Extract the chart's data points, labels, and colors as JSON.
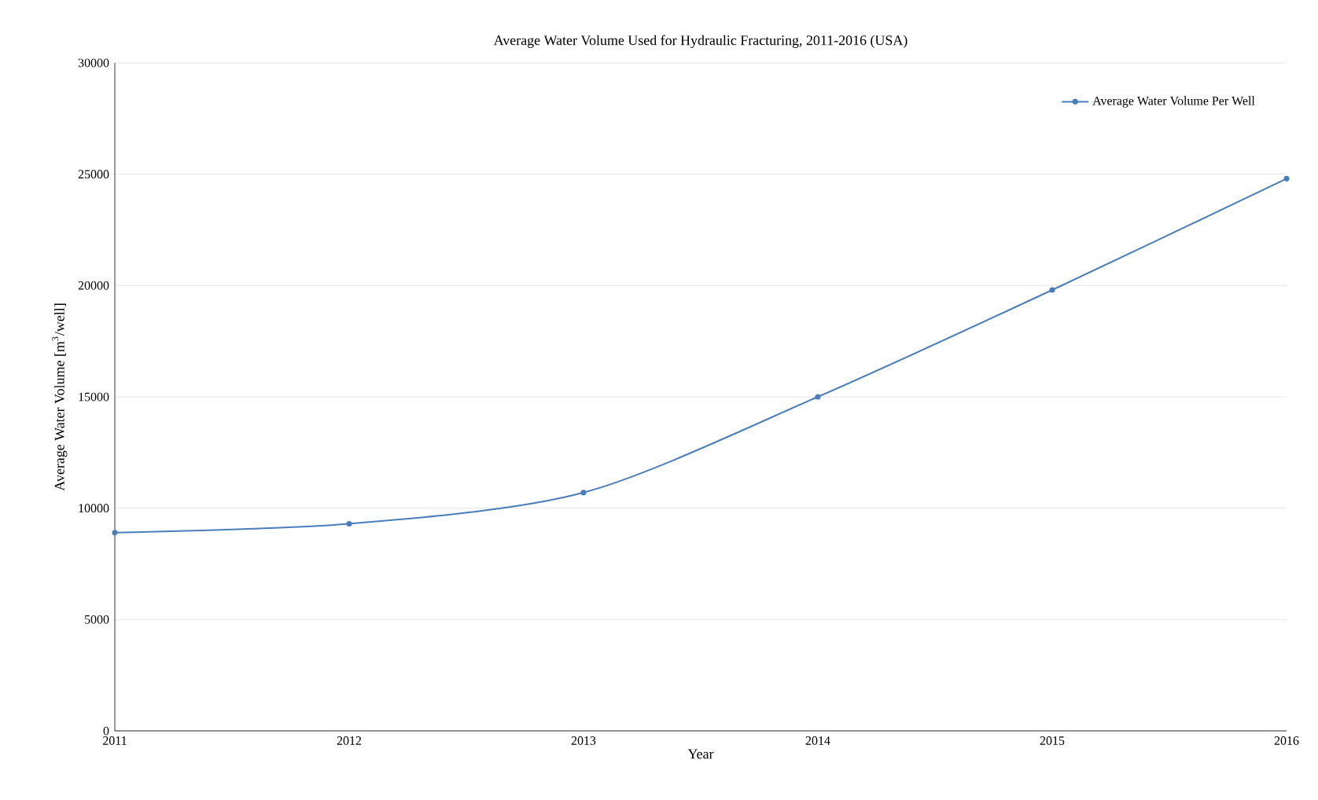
{
  "chart_data": {
    "type": "line",
    "title": "Average Water Volume Used for Hydraulic Fracturing, 2011-2016 (USA)",
    "xlabel": "Year",
    "ylabel": "Average Water Volume [m$^{3}$/well]",
    "x": [
      2011,
      2012,
      2013,
      2014,
      2015,
      2016
    ],
    "series": [
      {
        "name": "Average Water Volume Per Well",
        "color": "#4a7ebb",
        "values": [
          8900,
          9300,
          10700,
          15000,
          19800,
          24800
        ]
      }
    ],
    "xlim": [
      2011,
      2016
    ],
    "xticks": [
      2011,
      2012,
      2013,
      2014,
      2015,
      2016
    ],
    "ylim": [
      0,
      30000
    ],
    "yticks": [
      0,
      5000,
      10000,
      15000,
      20000,
      25000,
      30000
    ],
    "grid": "y",
    "legend": "top right",
    "marker": "circle",
    "line_style": "solid"
  }
}
